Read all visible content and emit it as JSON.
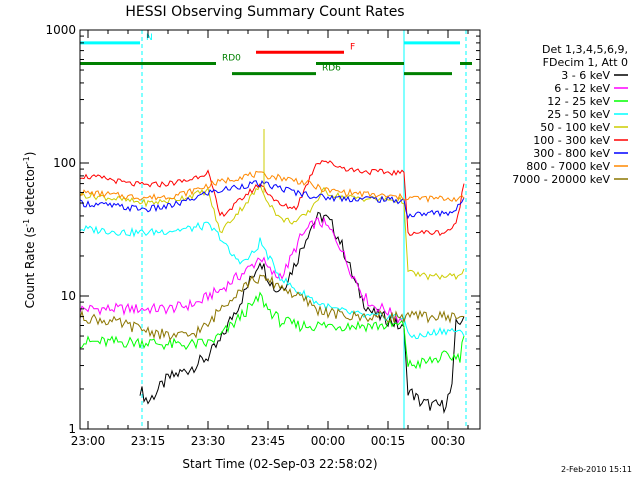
{
  "chart_data": {
    "type": "line",
    "title": "HESSI Observing Summary Count Rates",
    "xlabel": "Start Time (02-Sep-03 22:58:02)",
    "ylabel_main": "Count Rate (s",
    "ylabel_sup1": "-1",
    "ylabel_mid": " detector",
    "ylabel_sup2": "-1",
    "ylabel_end": ")",
    "footer": "2-Feb-2010 15:11",
    "xlim": [
      -2,
      98
    ],
    "ylim": [
      1,
      1000
    ],
    "y_scale": "log",
    "x_ticks": [
      {
        "v": 0,
        "label": "23:00"
      },
      {
        "v": 15,
        "label": "23:15"
      },
      {
        "v": 30,
        "label": "23:30"
      },
      {
        "v": 45,
        "label": "23:45"
      },
      {
        "v": 60,
        "label": "00:00"
      },
      {
        "v": 75,
        "label": "00:15"
      },
      {
        "v": 90,
        "label": "00:30"
      }
    ],
    "y_ticks": [
      {
        "v": 1,
        "label": "1"
      },
      {
        "v": 10,
        "label": "10"
      },
      {
        "v": 100,
        "label": "100"
      },
      {
        "v": 1000,
        "label": "1000"
      }
    ],
    "legend": {
      "position": "right",
      "header": [
        "Det 1,3,4,5,6,9,",
        "FDecim 1, Att 0"
      ]
    },
    "flags": [
      {
        "name": "N",
        "color": "#00ffff",
        "y": 800,
        "segments": [
          [
            -2,
            13
          ],
          [
            79,
            93
          ]
        ]
      },
      {
        "name": "F",
        "color": "#ff0000",
        "y": 680,
        "segments": [
          [
            42,
            64
          ]
        ]
      },
      {
        "name": "RD0",
        "color": "#008000",
        "y": 560,
        "segments": [
          [
            -2,
            32
          ],
          [
            57,
            79
          ],
          [
            93,
            96
          ]
        ]
      },
      {
        "name": "RD6",
        "color": "#008000",
        "y": 470,
        "segments": [
          [
            36,
            57
          ],
          [
            79,
            91
          ]
        ]
      }
    ],
    "vlines": [
      {
        "x": 13.5,
        "color": "#00ffff",
        "style": "dashed"
      },
      {
        "x": 79,
        "color": "#00ffff",
        "style": "solid"
      },
      {
        "x": 94.5,
        "color": "#00ffff",
        "style": "dashed"
      }
    ],
    "series": [
      {
        "name": "3 - 6 keV",
        "color": "#000000",
        "points": [
          [
            13,
            2
          ],
          [
            15,
            1.6
          ],
          [
            20,
            2.4
          ],
          [
            25,
            2.8
          ],
          [
            30,
            3.5
          ],
          [
            33,
            4.5
          ],
          [
            36,
            7
          ],
          [
            38,
            9
          ],
          [
            40,
            12
          ],
          [
            42,
            16
          ],
          [
            43,
            19
          ],
          [
            45,
            14
          ],
          [
            47,
            11
          ],
          [
            49,
            12
          ],
          [
            52,
            18
          ],
          [
            55,
            30
          ],
          [
            57,
            38
          ],
          [
            59,
            40
          ],
          [
            61,
            34
          ],
          [
            63,
            26
          ],
          [
            65,
            18
          ],
          [
            67,
            12
          ],
          [
            69,
            9
          ],
          [
            71,
            7.5
          ],
          [
            73,
            7
          ],
          [
            76,
            6.5
          ],
          [
            79,
            5.5
          ],
          [
            80,
            2
          ],
          [
            83,
            1.6
          ],
          [
            86,
            1.5
          ],
          [
            89,
            1.5
          ],
          [
            91,
            2
          ],
          [
            92,
            6
          ],
          [
            94,
            7
          ]
        ]
      },
      {
        "name": "6 - 12 keV",
        "color": "#ff00ff",
        "points": [
          [
            -2,
            8
          ],
          [
            5,
            8
          ],
          [
            10,
            8
          ],
          [
            15,
            8
          ],
          [
            20,
            8
          ],
          [
            25,
            8.5
          ],
          [
            28,
            9
          ],
          [
            30,
            10
          ],
          [
            33,
            11
          ],
          [
            36,
            13
          ],
          [
            39,
            15
          ],
          [
            42,
            18
          ],
          [
            43,
            20
          ],
          [
            45,
            16
          ],
          [
            47,
            14
          ],
          [
            49,
            15
          ],
          [
            51,
            20
          ],
          [
            53,
            27
          ],
          [
            55,
            32
          ],
          [
            57,
            36
          ],
          [
            59,
            35
          ],
          [
            61,
            30
          ],
          [
            63,
            24
          ],
          [
            65,
            17
          ],
          [
            67,
            13
          ],
          [
            69,
            10
          ],
          [
            71,
            8.5
          ],
          [
            74,
            8
          ],
          [
            77,
            7
          ],
          [
            79,
            6.5
          ]
        ]
      },
      {
        "name": "12 - 25 keV",
        "color": "#00ff00",
        "points": [
          [
            -2,
            4.5
          ],
          [
            5,
            4.5
          ],
          [
            10,
            4.5
          ],
          [
            15,
            4.5
          ],
          [
            20,
            4.3
          ],
          [
            25,
            4.3
          ],
          [
            30,
            4.4
          ],
          [
            33,
            5
          ],
          [
            36,
            6
          ],
          [
            39,
            7.5
          ],
          [
            42,
            9
          ],
          [
            43,
            10
          ],
          [
            45,
            8
          ],
          [
            48,
            6.5
          ],
          [
            52,
            6
          ],
          [
            56,
            6
          ],
          [
            60,
            6
          ],
          [
            65,
            6
          ],
          [
            70,
            6
          ],
          [
            75,
            6
          ],
          [
            79,
            6
          ],
          [
            80,
            3
          ],
          [
            85,
            3.2
          ],
          [
            89,
            3.5
          ],
          [
            93,
            3.5
          ],
          [
            94,
            5
          ]
        ]
      },
      {
        "name": "25 - 50 keV",
        "color": "#00ffff",
        "points": [
          [
            -2,
            32
          ],
          [
            5,
            31
          ],
          [
            10,
            30
          ],
          [
            15,
            30
          ],
          [
            20,
            31
          ],
          [
            25,
            32
          ],
          [
            30,
            34
          ],
          [
            33,
            28
          ],
          [
            36,
            20
          ],
          [
            39,
            18
          ],
          [
            42,
            22
          ],
          [
            43,
            26
          ],
          [
            45,
            20
          ],
          [
            48,
            14
          ],
          [
            52,
            11
          ],
          [
            55,
            10
          ],
          [
            57,
            9
          ],
          [
            59,
            8.5
          ],
          [
            61,
            8
          ],
          [
            65,
            7.5
          ],
          [
            70,
            7
          ],
          [
            75,
            7
          ],
          [
            79,
            7
          ],
          [
            80,
            5
          ],
          [
            84,
            5
          ],
          [
            88,
            5.5
          ],
          [
            92,
            5.5
          ],
          [
            94,
            5
          ]
        ]
      },
      {
        "name": "50 - 100 keV",
        "color": "#cccc00",
        "points": [
          [
            -2,
            58
          ],
          [
            5,
            55
          ],
          [
            10,
            52
          ],
          [
            15,
            50
          ],
          [
            20,
            52
          ],
          [
            25,
            56
          ],
          [
            30,
            62
          ],
          [
            33,
            30
          ],
          [
            36,
            38
          ],
          [
            39,
            48
          ],
          [
            42,
            62
          ],
          [
            43,
            66
          ],
          [
            45,
            52
          ],
          [
            48,
            38
          ],
          [
            52,
            36
          ],
          [
            55,
            42
          ],
          [
            57,
            52
          ],
          [
            59,
            62
          ],
          [
            61,
            58
          ],
          [
            65,
            55
          ],
          [
            70,
            54
          ],
          [
            75,
            53
          ],
          [
            79,
            52
          ],
          [
            80,
            15
          ],
          [
            85,
            14
          ],
          [
            89,
            14
          ],
          [
            92,
            14
          ],
          [
            94,
            16
          ]
        ]
      },
      {
        "name": "100 - 300 keV",
        "color": "#ff0000",
        "points": [
          [
            -2,
            80
          ],
          [
            5,
            76
          ],
          [
            10,
            70
          ],
          [
            15,
            68
          ],
          [
            20,
            70
          ],
          [
            25,
            74
          ],
          [
            30,
            86
          ],
          [
            33,
            40
          ],
          [
            36,
            46
          ],
          [
            39,
            56
          ],
          [
            42,
            66
          ],
          [
            43,
            70
          ],
          [
            45,
            60
          ],
          [
            48,
            48
          ],
          [
            52,
            46
          ],
          [
            55,
            72
          ],
          [
            57,
            100
          ],
          [
            59,
            105
          ],
          [
            61,
            98
          ],
          [
            65,
            90
          ],
          [
            70,
            86
          ],
          [
            75,
            85
          ],
          [
            79,
            84
          ],
          [
            80,
            30
          ],
          [
            85,
            30
          ],
          [
            89,
            30
          ],
          [
            92,
            34
          ],
          [
            94,
            70
          ]
        ]
      },
      {
        "name": "300 - 800 keV",
        "color": "#0000ff",
        "points": [
          [
            -2,
            50
          ],
          [
            5,
            48
          ],
          [
            10,
            46
          ],
          [
            15,
            45
          ],
          [
            20,
            47
          ],
          [
            25,
            52
          ],
          [
            30,
            60
          ],
          [
            33,
            62
          ],
          [
            36,
            65
          ],
          [
            39,
            68
          ],
          [
            42,
            70
          ],
          [
            45,
            68
          ],
          [
            48,
            65
          ],
          [
            52,
            60
          ],
          [
            55,
            58
          ],
          [
            57,
            56
          ],
          [
            60,
            55
          ],
          [
            65,
            54
          ],
          [
            70,
            54
          ],
          [
            75,
            53
          ],
          [
            79,
            52
          ],
          [
            80,
            40
          ],
          [
            85,
            42
          ],
          [
            89,
            42
          ],
          [
            92,
            44
          ],
          [
            94,
            55
          ]
        ]
      },
      {
        "name": "800 - 7000 keV",
        "color": "#ff8800",
        "points": [
          [
            -2,
            60
          ],
          [
            5,
            58
          ],
          [
            10,
            56
          ],
          [
            15,
            55
          ],
          [
            20,
            56
          ],
          [
            25,
            60
          ],
          [
            30,
            68
          ],
          [
            33,
            72
          ],
          [
            36,
            76
          ],
          [
            39,
            80
          ],
          [
            42,
            82
          ],
          [
            45,
            80
          ],
          [
            48,
            78
          ],
          [
            52,
            74
          ],
          [
            55,
            70
          ],
          [
            57,
            66
          ],
          [
            60,
            62
          ],
          [
            65,
            60
          ],
          [
            70,
            58
          ],
          [
            75,
            56
          ],
          [
            79,
            55
          ],
          [
            80,
            55
          ],
          [
            85,
            54
          ],
          [
            89,
            54
          ],
          [
            92,
            54
          ],
          [
            94,
            54
          ]
        ]
      },
      {
        "name": "7000 - 20000 keV",
        "color": "#8b7500",
        "points": [
          [
            -2,
            7
          ],
          [
            5,
            6.5
          ],
          [
            10,
            6
          ],
          [
            15,
            5.5
          ],
          [
            20,
            5
          ],
          [
            25,
            5
          ],
          [
            30,
            6
          ],
          [
            33,
            8
          ],
          [
            36,
            10
          ],
          [
            39,
            12
          ],
          [
            42,
            13.5
          ],
          [
            45,
            13
          ],
          [
            48,
            12
          ],
          [
            52,
            10
          ],
          [
            55,
            9
          ],
          [
            57,
            8
          ],
          [
            60,
            7.5
          ],
          [
            65,
            7
          ],
          [
            70,
            7
          ],
          [
            75,
            7
          ],
          [
            79,
            7
          ],
          [
            80,
            7
          ],
          [
            85,
            7
          ],
          [
            89,
            7
          ],
          [
            92,
            7
          ],
          [
            94,
            7
          ]
        ]
      }
    ],
    "spike": {
      "x": 44,
      "y": 180,
      "color": "#cccc00"
    }
  }
}
